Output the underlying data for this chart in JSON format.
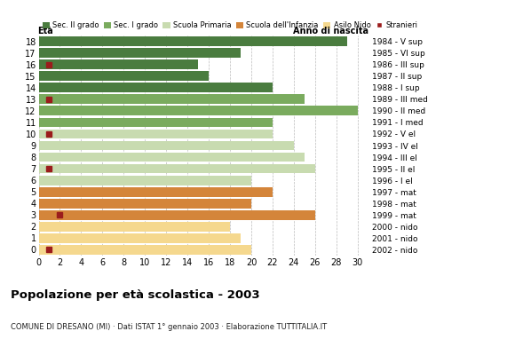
{
  "ages": [
    18,
    17,
    16,
    15,
    14,
    13,
    12,
    11,
    10,
    9,
    8,
    7,
    6,
    5,
    4,
    3,
    2,
    1,
    0
  ],
  "years": [
    "1984 - V sup",
    "1985 - VI sup",
    "1986 - III sup",
    "1987 - II sup",
    "1988 - I sup",
    "1989 - III med",
    "1990 - II med",
    "1991 - I med",
    "1992 - V el",
    "1993 - IV el",
    "1994 - III el",
    "1995 - II el",
    "1996 - I el",
    "1997 - mat",
    "1998 - mat",
    "1999 - mat",
    "2000 - nido",
    "2001 - nido",
    "2002 - nido"
  ],
  "values": [
    29,
    19,
    15,
    16,
    22,
    25,
    30,
    22,
    22,
    24,
    25,
    26,
    20,
    22,
    20,
    26,
    18,
    19,
    20
  ],
  "stranieri": [
    0,
    0,
    1,
    0,
    0,
    1,
    0,
    0,
    1,
    0,
    0,
    1,
    0,
    0,
    0,
    2,
    0,
    0,
    1
  ],
  "categories": {
    "Sec. II grado": {
      "ages": [
        14,
        15,
        16,
        17,
        18
      ],
      "color": "#4a7c3f"
    },
    "Sec. I grado": {
      "ages": [
        11,
        12,
        13
      ],
      "color": "#7aab5e"
    },
    "Scuola Primaria": {
      "ages": [
        6,
        7,
        8,
        9,
        10
      ],
      "color": "#c8dbb0"
    },
    "Scuola dell'Infanzia": {
      "ages": [
        3,
        4,
        5
      ],
      "color": "#d4853a"
    },
    "Asilo Nido": {
      "ages": [
        0,
        1,
        2
      ],
      "color": "#f5d88e"
    }
  },
  "stranieri_color": "#9b1c1c",
  "background_color": "#ffffff",
  "grid_color": "#bbbbbb",
  "title": "Popolazione per età scolastica - 2003",
  "subtitle": "COMUNE DI DRESANO (MI) · Dati ISTAT 1° gennaio 2003 · Elaborazione TUTTITALIA.IT",
  "xlabel_eta": "Età",
  "xlabel_anno": "Anno di nascita",
  "xlim": [
    0,
    31
  ],
  "xticks": [
    0,
    2,
    4,
    6,
    8,
    10,
    12,
    14,
    16,
    18,
    20,
    22,
    24,
    26,
    28,
    30
  ],
  "bar_height": 0.82
}
